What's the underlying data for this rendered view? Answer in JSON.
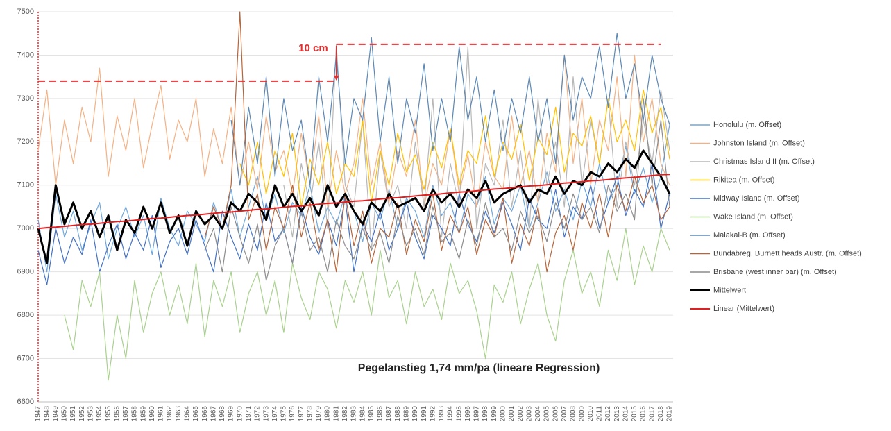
{
  "chart_data": {
    "type": "line",
    "annotations": [
      {
        "text": "10 cm",
        "x": "1981"
      },
      {
        "text": "Pegelanstieg 1,74 mm/pa (lineare Regression)"
      }
    ],
    "reference_lines": [
      {
        "y": 7340,
        "from": "1947",
        "to": "1981",
        "color": "#e03030"
      },
      {
        "y": 7425,
        "from": "1981",
        "to": "2018",
        "color": "#e03030"
      }
    ],
    "ylim": [
      6600,
      7500
    ],
    "yticks": [
      6600,
      6700,
      6800,
      6900,
      7000,
      7100,
      7200,
      7300,
      7400,
      7500
    ],
    "grid": true,
    "legend": "right",
    "categories": [
      "1947",
      "1948",
      "1949",
      "1950",
      "1951",
      "1952",
      "1953",
      "1954",
      "1955",
      "1956",
      "1957",
      "1958",
      "1959",
      "1960",
      "1961",
      "1962",
      "1963",
      "1964",
      "1965",
      "1966",
      "1967",
      "1968",
      "1969",
      "1970",
      "1971",
      "1972",
      "1973",
      "1974",
      "1975",
      "1976",
      "1977",
      "1978",
      "1979",
      "1980",
      "1981",
      "1982",
      "1983",
      "1984",
      "1985",
      "1986",
      "1987",
      "1988",
      "1989",
      "1990",
      "1991",
      "1992",
      "1993",
      "1994",
      "1995",
      "1996",
      "1997",
      "1998",
      "1999",
      "2000",
      "2001",
      "2002",
      "2003",
      "2004",
      "2005",
      "2006",
      "2007",
      "2008",
      "2009",
      "2010",
      "2011",
      "2012",
      "2013",
      "2014",
      "2015",
      "2016",
      "2017",
      "2018",
      "2019"
    ],
    "series": [
      {
        "name": "Honolulu (m. Offset)",
        "color": "#6fa8dc",
        "width": 1.2,
        "values": [
          7020,
          6900,
          7080,
          6980,
          7040,
          6950,
          7010,
          7060,
          6930,
          7000,
          7050,
          6980,
          7030,
          6940,
          7070,
          7000,
          6960,
          7040,
          7010,
          6970,
          7060,
          7000,
          7090,
          6980,
          7050,
          7120,
          7020,
          7080,
          6990,
          7060,
          7030,
          7100,
          6990,
          7050,
          7010,
          7080,
          7040,
          6970,
          7060,
          7020,
          7090,
          7000,
          7070,
          7040,
          6980,
          7100,
          7030,
          7060,
          6990,
          7080,
          7050,
          7120,
          7010,
          7070,
          7040,
          7100,
          7000,
          7060,
          7130,
          7040,
          7090,
          7020,
          7110,
          7050,
          7150,
          7060,
          7100,
          7190,
          7080,
          7140,
          7060,
          7120,
          7240
        ]
      },
      {
        "name": "Johnston Island (m. Offset)",
        "color": "#f4b183",
        "width": 1.2,
        "values": [
          7180,
          7320,
          7100,
          7250,
          7150,
          7280,
          7200,
          7370,
          7120,
          7260,
          7180,
          7300,
          7140,
          7240,
          7330,
          7160,
          7250,
          7200,
          7300,
          7120,
          7230,
          7150,
          7280,
          7100,
          7200,
          7090,
          7260,
          7130,
          7180,
          7080,
          7220,
          7100,
          7260,
          7050,
          7180,
          7080,
          7150,
          7300,
          7100,
          7200,
          7060,
          7180,
          7120,
          7250,
          7050,
          7150,
          7100,
          7230,
          7080,
          7170,
          7050,
          7200,
          7120,
          7090,
          7260,
          7100,
          7180,
          7060,
          7220,
          7130,
          7400,
          7150,
          7300,
          7100,
          7250,
          7180,
          7350,
          7120,
          7400,
          7200,
          7300,
          7150,
          7100
        ]
      },
      {
        "name": "Christmas Island II (m. Offset)",
        "color": "#b7b7b7",
        "width": 1.2,
        "values": [
          null,
          null,
          null,
          null,
          null,
          null,
          null,
          null,
          null,
          null,
          null,
          null,
          null,
          null,
          null,
          null,
          null,
          null,
          null,
          null,
          null,
          null,
          null,
          null,
          null,
          null,
          null,
          null,
          7100,
          6980,
          7150,
          7050,
          7200,
          7000,
          7425,
          7100,
          7050,
          7250,
          6950,
          7180,
          7050,
          7100,
          7000,
          7200,
          7050,
          7300,
          6980,
          7150,
          7050,
          7420,
          7000,
          7150,
          7100,
          7250,
          7050,
          7180,
          7000,
          7300,
          7100,
          7200,
          7050,
          7350,
          7100,
          7250,
          7150,
          7300,
          7050,
          7200,
          7100,
          7250,
          7150,
          7320,
          7180
        ]
      },
      {
        "name": "Rikitea (m. Offset)",
        "color": "#ffc000",
        "width": 1.2,
        "values": [
          null,
          null,
          null,
          null,
          null,
          null,
          null,
          null,
          null,
          null,
          null,
          null,
          null,
          null,
          null,
          null,
          null,
          null,
          null,
          null,
          null,
          null,
          null,
          7150,
          7100,
          7200,
          7080,
          7180,
          7120,
          7220,
          7050,
          7160,
          7100,
          7200,
          7080,
          7150,
          7120,
          7250,
          7060,
          7180,
          7100,
          7220,
          7130,
          7170,
          7090,
          7200,
          7140,
          7230,
          7100,
          7180,
          7150,
          7260,
          7120,
          7200,
          7160,
          7240,
          7110,
          7210,
          7170,
          7280,
          7130,
          7220,
          7190,
          7260,
          7150,
          7300,
          7200,
          7250,
          7180,
          7320,
          7220,
          7280,
          7160
        ]
      },
      {
        "name": "Midway Island (m. Offset)",
        "color": "#4472c4",
        "width": 1.2,
        "values": [
          6950,
          6870,
          7000,
          6920,
          6980,
          6940,
          7020,
          6900,
          6960,
          7010,
          6930,
          6990,
          6950,
          7030,
          6910,
          6970,
          7000,
          6940,
          7020,
          6960,
          6900,
          7040,
          6980,
          6930,
          7010,
          6950,
          7060,
          6970,
          7000,
          6920,
          7050,
          6980,
          6940,
          7020,
          6960,
          7070,
          6900,
          7010,
          6970,
          7040,
          6950,
          7000,
          7060,
          6980,
          6930,
          7030,
          7000,
          6960,
          7080,
          7010,
          6970,
          7040,
          6990,
          7060,
          7010,
          6950,
          7070,
          7020,
          7000,
          7090,
          6980,
          7050,
          7020,
          7100,
          7000,
          7060,
          7120,
          7030,
          7090,
          7050,
          7150,
          7000,
          7080
        ]
      },
      {
        "name": "Wake Island (m. Offset)",
        "color": "#a9d18e",
        "width": 1.2,
        "values": [
          null,
          null,
          null,
          6800,
          6720,
          6880,
          6820,
          6900,
          6650,
          6800,
          6700,
          6880,
          6760,
          6850,
          6900,
          6800,
          6870,
          6780,
          6920,
          6750,
          6880,
          6820,
          6900,
          6760,
          6850,
          6900,
          6800,
          6880,
          6760,
          6920,
          6840,
          6790,
          6900,
          6860,
          6770,
          6880,
          6830,
          6900,
          6800,
          6950,
          6840,
          6880,
          6780,
          6900,
          6820,
          6860,
          6790,
          6920,
          6850,
          6880,
          6810,
          6700,
          6870,
          6830,
          6900,
          6780,
          6860,
          6920,
          6800,
          6740,
          6880,
          6950,
          6850,
          6900,
          6820,
          6950,
          6880,
          7000,
          6870,
          6960,
          6900,
          7000,
          6950
        ]
      },
      {
        "name": "Malakal-B (m. Offset)",
        "color": "#5b88b5",
        "width": 1.2,
        "values": [
          null,
          null,
          null,
          null,
          null,
          null,
          null,
          null,
          null,
          null,
          null,
          null,
          null,
          null,
          null,
          null,
          null,
          null,
          null,
          null,
          null,
          null,
          7250,
          7100,
          7280,
          7150,
          7350,
          7120,
          7300,
          7180,
          7250,
          7100,
          7350,
          7200,
          7400,
          7150,
          7300,
          7250,
          7440,
          7200,
          7350,
          7150,
          7300,
          7220,
          7380,
          7180,
          7300,
          7200,
          7420,
          7250,
          7350,
          7200,
          7320,
          7180,
          7300,
          7220,
          7350,
          7200,
          7300,
          7150,
          7400,
          7250,
          7350,
          7300,
          7420,
          7280,
          7450,
          7300,
          7380,
          7250,
          7400,
          7300,
          7240
        ]
      },
      {
        "name": "Bundabreg, Burnett heads Austr. (m. Offset)",
        "color": "#b5653a",
        "width": 1.2,
        "values": [
          null,
          null,
          null,
          null,
          null,
          null,
          null,
          null,
          null,
          null,
          null,
          null,
          null,
          null,
          null,
          null,
          null,
          null,
          null,
          6980,
          7050,
          7000,
          7100,
          7500,
          7020,
          7080,
          6950,
          7050,
          7000,
          7100,
          6980,
          7060,
          6950,
          7020,
          6900,
          7080,
          6960,
          7040,
          6920,
          7000,
          6980,
          7060,
          6940,
          7020,
          6970,
          7080,
          6950,
          7030,
          6990,
          7050,
          6940,
          7020,
          6980,
          7070,
          6920,
          7010,
          6960,
          7050,
          6900,
          6990,
          7030,
          6950,
          7060,
          7000,
          7080,
          6980,
          7100,
          7040,
          7120,
          7060,
          7100,
          7020,
          7050
        ]
      },
      {
        "name": "Brisbane (west inner bar) (m. Offset)",
        "color": "#8c8c8c",
        "width": 1.2,
        "values": [
          null,
          null,
          null,
          null,
          null,
          null,
          null,
          null,
          null,
          null,
          null,
          null,
          null,
          null,
          null,
          null,
          null,
          null,
          null,
          6950,
          7000,
          6900,
          7050,
          6980,
          6920,
          7010,
          6880,
          6960,
          7000,
          6920,
          7040,
          6950,
          6980,
          6900,
          7020,
          6960,
          6930,
          7000,
          6950,
          6990,
          6920,
          7030,
          6960,
          7000,
          6940,
          7050,
          6970,
          6990,
          6930,
          7020,
          6960,
          7060,
          6980,
          7000,
          6950,
          7040,
          6990,
          7030,
          6970,
          7060,
          7000,
          7080,
          7020,
          7050,
          6990,
          7100,
          7040,
          7080,
          7020,
          7300,
          7100,
          7250,
          7050
        ]
      },
      {
        "name": "Mittelwert",
        "color": "#000000",
        "width": 3,
        "values": [
          7000,
          6920,
          7100,
          7010,
          7060,
          7000,
          7040,
          6980,
          7030,
          6950,
          7020,
          6990,
          7050,
          7000,
          7060,
          6990,
          7030,
          6960,
          7040,
          7010,
          7030,
          7000,
          7060,
          7040,
          7080,
          7060,
          7020,
          7100,
          7050,
          7080,
          7040,
          7070,
          7030,
          7100,
          7050,
          7080,
          7040,
          7010,
          7060,
          7040,
          7080,
          7050,
          7060,
          7070,
          7040,
          7090,
          7060,
          7080,
          7050,
          7090,
          7070,
          7110,
          7060,
          7080,
          7090,
          7100,
          7060,
          7090,
          7080,
          7120,
          7080,
          7110,
          7100,
          7130,
          7120,
          7150,
          7130,
          7160,
          7140,
          7180,
          7150,
          7120,
          7080
        ]
      },
      {
        "name": "Linear (Mittelwert)",
        "color": "#e02020",
        "width": 2,
        "values": [
          7000,
          7002,
          7003,
          7005,
          7007,
          7009,
          7010,
          7012,
          7014,
          7016,
          7017,
          7019,
          7021,
          7023,
          7024,
          7026,
          7028,
          7030,
          7031,
          7033,
          7035,
          7037,
          7038,
          7040,
          7042,
          7044,
          7045,
          7047,
          7049,
          7051,
          7052,
          7054,
          7056,
          7058,
          7059,
          7061,
          7063,
          7064,
          7066,
          7068,
          7070,
          7071,
          7073,
          7075,
          7077,
          7078,
          7080,
          7082,
          7084,
          7085,
          7087,
          7089,
          7091,
          7092,
          7094,
          7096,
          7098,
          7099,
          7101,
          7103,
          7105,
          7106,
          7108,
          7110,
          7111,
          7113,
          7115,
          7117,
          7118,
          7120,
          7122,
          7124,
          7125
        ]
      }
    ]
  }
}
